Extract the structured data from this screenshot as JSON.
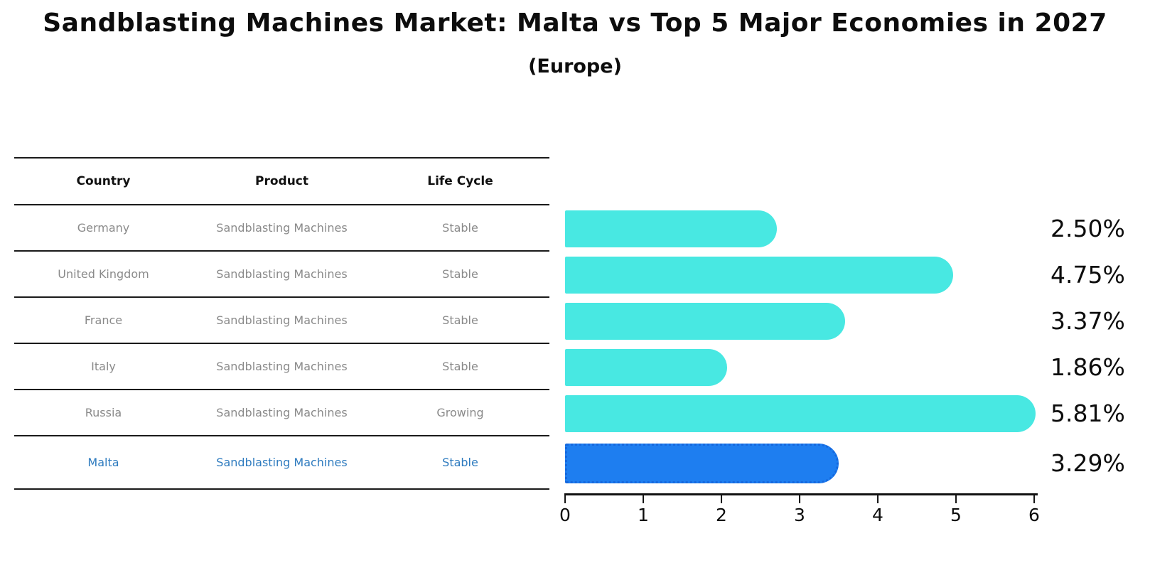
{
  "title": "Sandblasting Machines Market: Malta vs Top 5 Major Economies in 2027",
  "subtitle": "(Europe)",
  "table": {
    "headers": [
      "Country",
      "Product",
      "Life Cycle"
    ],
    "rows": [
      {
        "country": "Germany",
        "product": "Sandblasting Machines",
        "life_cycle": "Stable",
        "highlighted": false
      },
      {
        "country": "United Kingdom",
        "product": "Sandblasting Machines",
        "life_cycle": "Stable",
        "highlighted": false
      },
      {
        "country": "France",
        "product": "Sandblasting Machines",
        "life_cycle": "Stable",
        "highlighted": false
      },
      {
        "country": "Italy",
        "product": "Sandblasting Machines",
        "life_cycle": "Stable",
        "highlighted": false
      },
      {
        "country": "Russia",
        "product": "Sandblasting Machines",
        "life_cycle": "Growing",
        "highlighted": false
      },
      {
        "country": "Malta",
        "product": "Sandblasting Machines",
        "life_cycle": "Stable",
        "highlighted": true
      }
    ]
  },
  "chart_data": {
    "type": "bar",
    "orientation": "horizontal",
    "title": "Sandblasting Machines Market: Malta vs Top 5 Major Economies in 2027 (Europe)",
    "categories": [
      "Germany",
      "United Kingdom",
      "France",
      "Italy",
      "Russia",
      "Malta"
    ],
    "values": [
      2.5,
      4.75,
      3.37,
      1.86,
      5.81,
      3.29
    ],
    "value_labels": [
      "2.50%",
      "4.75%",
      "3.37%",
      "1.86%",
      "5.81%",
      "3.29%"
    ],
    "xlim": [
      0,
      6
    ],
    "x_ticks": [
      "0",
      "1",
      "2",
      "3",
      "4",
      "5",
      "6"
    ],
    "grid": false,
    "legend": false,
    "highlight_index": 5
  },
  "colors": {
    "bar": "#48e8e2",
    "highlight_bar": "#1e7ef0",
    "highlight_bar_border": "#1668dd",
    "table_cell_text": "#8a8a8a",
    "highlight_text": "#2e7bbf",
    "ink": "#0d0d0d"
  }
}
